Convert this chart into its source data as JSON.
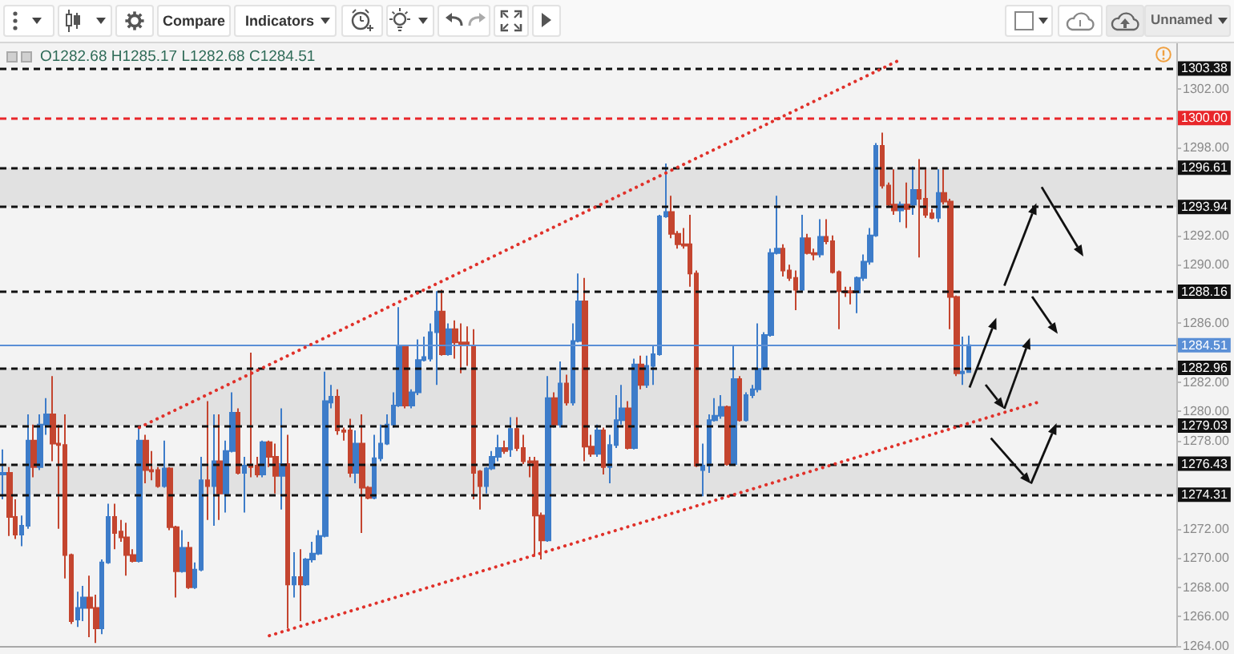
{
  "chart_data": {
    "type": "candlestick",
    "categories": [
      null,
      null,
      null,
      null,
      null,
      null,
      null,
      null,
      null,
      null,
      null,
      null,
      null,
      null,
      null,
      null,
      null,
      null,
      null,
      null,
      null,
      null,
      null,
      null,
      null,
      null,
      null,
      null,
      null,
      null,
      null,
      null,
      null,
      null,
      null,
      null,
      null,
      null,
      null,
      null,
      null,
      null,
      null,
      null,
      null,
      null,
      null,
      null,
      null,
      null,
      null,
      null,
      null,
      null,
      null,
      null,
      null,
      null,
      null,
      null,
      null,
      null,
      null,
      null,
      null,
      null,
      null,
      null,
      null,
      null,
      null,
      null,
      null,
      null,
      null,
      null,
      null,
      null,
      null,
      null,
      null,
      null,
      null,
      null,
      null,
      null,
      null,
      null,
      null,
      null,
      null,
      null,
      null,
      null,
      null,
      null,
      null,
      null,
      null,
      null,
      null,
      null,
      null,
      null,
      null,
      null,
      null,
      null,
      null,
      null,
      null,
      null,
      null,
      null,
      null,
      null,
      null,
      null,
      null,
      null,
      null,
      null,
      null,
      null,
      null,
      null,
      null,
      null,
      null,
      null,
      null,
      null,
      null,
      null,
      null,
      null,
      null,
      null,
      null,
      null,
      null,
      null,
      null,
      null,
      null,
      null,
      null,
      null,
      null,
      null,
      null,
      null,
      null,
      null,
      null,
      null,
      null,
      null,
      null,
      null,
      null,
      null,
      null,
      null,
      null,
      null,
      null,
      null,
      null,
      null,
      null,
      null,
      null,
      null,
      null,
      null,
      null,
      null,
      null,
      null,
      null,
      null,
      null,
      null,
      null,
      null,
      null,
      null,
      null,
      null
    ],
    "ohlc": [
      [
        1275.7,
        1277.4,
        1274.0,
        1275.8
      ],
      [
        1275.8,
        1276.2,
        1271.5,
        1272.8
      ],
      [
        1272.8,
        1274.0,
        1271.3,
        1271.6
      ],
      [
        1271.6,
        1272.9,
        1270.8,
        1272.2
      ],
      [
        1272.2,
        1279.8,
        1272.0,
        1278.0
      ],
      [
        1278.0,
        1279.1,
        1275.5,
        1276.2
      ],
      [
        1276.2,
        1279.8,
        1276.0,
        1279.1
      ],
      [
        1279.1,
        1280.9,
        1278.4,
        1279.8
      ],
      [
        1279.8,
        1282.4,
        1276.6,
        1277.8
      ],
      [
        1277.8,
        1279.1,
        1272.0,
        1277.7
      ],
      [
        1277.7,
        1279.8,
        1268.6,
        1270.2
      ],
      [
        1270.2,
        1270.3,
        1265.5,
        1265.7
      ],
      [
        1265.8,
        1267.7,
        1265.3,
        1266.6
      ],
      [
        1266.6,
        1268.1,
        1265.7,
        1267.3
      ],
      [
        1267.3,
        1268.8,
        1264.6,
        1266.6
      ],
      [
        1266.6,
        1267.5,
        1264.2,
        1265.2
      ],
      [
        1265.2,
        1269.9,
        1264.8,
        1269.7
      ],
      [
        1269.7,
        1273.7,
        1269.6,
        1272.8
      ],
      [
        1272.8,
        1273.7,
        1270.6,
        1271.7
      ],
      [
        1271.8,
        1272.6,
        1271.1,
        1271.4
      ],
      [
        1271.4,
        1272.4,
        1268.8,
        1270.2
      ],
      [
        1270.2,
        1270.6,
        1269.7,
        1269.8
      ],
      [
        1269.8,
        1278.9,
        1269.7,
        1278.0
      ],
      [
        1278.0,
        1278.4,
        1275.1,
        1276.0
      ],
      [
        1276.0,
        1277.3,
        1275.3,
        1275.9
      ],
      [
        1276.0,
        1276.2,
        1274.8,
        1274.9
      ],
      [
        1274.9,
        1278.0,
        1274.8,
        1276.1
      ],
      [
        1276.1,
        1276.2,
        1271.9,
        1272.1
      ],
      [
        1272.1,
        1272.2,
        1267.3,
        1269.1
      ],
      [
        1269.1,
        1271.9,
        1269.0,
        1270.7
      ],
      [
        1270.7,
        1271.1,
        1267.9,
        1268.0
      ],
      [
        1268.0,
        1269.7,
        1267.9,
        1269.2
      ],
      [
        1269.2,
        1276.9,
        1269.1,
        1275.3
      ],
      [
        1275.3,
        1280.7,
        1272.6,
        1274.9
      ],
      [
        1274.9,
        1279.8,
        1272.2,
        1276.6
      ],
      [
        1276.6,
        1279.8,
        1272.6,
        1274.4
      ],
      [
        1274.4,
        1278.0,
        1273.1,
        1277.3
      ],
      [
        1277.3,
        1281.3,
        1277.2,
        1279.9
      ],
      [
        1279.9,
        1280.2,
        1275.7,
        1275.8
      ],
      [
        1275.8,
        1276.9,
        1273.1,
        1276.3
      ],
      [
        1276.3,
        1284.0,
        1275.5,
        1276.2
      ],
      [
        1276.3,
        1276.9,
        1275.5,
        1275.7
      ],
      [
        1275.7,
        1278.0,
        1275.5,
        1277.9
      ],
      [
        1277.9,
        1278.0,
        1276.2,
        1276.9
      ],
      [
        1276.9,
        1277.8,
        1274.4,
        1275.6
      ],
      [
        1275.6,
        1280.2,
        1273.3,
        1276.4
      ],
      [
        1276.4,
        1278.4,
        1265.2,
        1268.2
      ],
      [
        1268.2,
        1270.4,
        1267.3,
        1268.7
      ],
      [
        1268.7,
        1270.6,
        1265.7,
        1268.2
      ],
      [
        1268.2,
        1270.0,
        1268.1,
        1269.9
      ],
      [
        1269.9,
        1271.1,
        1269.7,
        1270.3
      ],
      [
        1270.3,
        1271.9,
        1270.2,
        1271.5
      ],
      [
        1271.5,
        1282.7,
        1271.4,
        1280.7
      ],
      [
        1280.6,
        1281.8,
        1280.2,
        1281.0
      ],
      [
        1281.0,
        1281.5,
        1278.4,
        1278.7
      ],
      [
        1278.7,
        1278.9,
        1278.0,
        1278.6
      ],
      [
        1278.7,
        1279.5,
        1275.5,
        1275.8
      ],
      [
        1275.8,
        1278.7,
        1275.1,
        1277.8
      ],
      [
        1277.8,
        1279.8,
        1271.7,
        1274.8
      ],
      [
        1274.8,
        1274.9,
        1274.0,
        1274.1
      ],
      [
        1274.1,
        1278.4,
        1274.0,
        1276.8
      ],
      [
        1276.8,
        1279.1,
        1276.6,
        1277.8
      ],
      [
        1277.8,
        1279.8,
        1277.7,
        1279.1
      ],
      [
        1279.1,
        1281.3,
        1278.9,
        1280.4
      ],
      [
        1280.4,
        1287.1,
        1280.3,
        1284.4
      ],
      [
        1284.4,
        1284.5,
        1280.2,
        1280.4
      ],
      [
        1280.4,
        1281.5,
        1280.2,
        1281.3
      ],
      [
        1281.3,
        1284.9,
        1281.1,
        1283.5
      ],
      [
        1283.5,
        1285.1,
        1283.4,
        1283.7
      ],
      [
        1283.6,
        1286.0,
        1283.4,
        1285.4
      ],
      [
        1285.4,
        1288.2,
        1281.8,
        1286.8
      ],
      [
        1286.8,
        1288.3,
        1283.8,
        1283.9
      ],
      [
        1283.9,
        1286.0,
        1283.8,
        1285.6
      ],
      [
        1285.6,
        1286.2,
        1283.6,
        1284.7
      ],
      [
        1284.7,
        1286.0,
        1282.6,
        1284.6
      ],
      [
        1284.7,
        1285.8,
        1283.1,
        1284.5
      ],
      [
        1284.5,
        1285.6,
        1274.0,
        1275.8
      ],
      [
        1275.9,
        1276.0,
        1273.3,
        1274.9
      ],
      [
        1274.9,
        1276.2,
        1274.4,
        1276.1
      ],
      [
        1276.1,
        1277.3,
        1276.0,
        1276.9
      ],
      [
        1276.9,
        1278.4,
        1276.6,
        1277.5
      ],
      [
        1277.5,
        1278.0,
        1277.1,
        1277.3
      ],
      [
        1277.4,
        1279.6,
        1276.9,
        1278.8
      ],
      [
        1278.8,
        1279.6,
        1277.3,
        1277.5
      ],
      [
        1277.5,
        1278.4,
        1276.4,
        1276.6
      ],
      [
        1276.6,
        1276.9,
        1275.5,
        1276.5
      ],
      [
        1276.6,
        1276.9,
        1270.1,
        1272.9
      ],
      [
        1272.9,
        1273.1,
        1269.9,
        1271.2
      ],
      [
        1271.2,
        1282.4,
        1271.1,
        1280.9
      ],
      [
        1280.9,
        1281.3,
        1278.9,
        1279.1
      ],
      [
        1279.1,
        1283.4,
        1278.9,
        1281.9
      ],
      [
        1281.9,
        1282.5,
        1280.4,
        1280.6
      ],
      [
        1280.6,
        1286.0,
        1280.4,
        1284.8
      ],
      [
        1284.8,
        1289.4,
        1284.7,
        1287.5
      ],
      [
        1287.5,
        1289.1,
        1276.6,
        1277.6
      ],
      [
        1277.6,
        1278.4,
        1276.9,
        1277.1
      ],
      [
        1277.1,
        1279.1,
        1276.9,
        1278.7
      ],
      [
        1278.7,
        1278.9,
        1275.7,
        1276.2
      ],
      [
        1276.2,
        1278.4,
        1275.1,
        1277.7
      ],
      [
        1277.7,
        1281.1,
        1277.5,
        1279.4
      ],
      [
        1279.4,
        1281.8,
        1279.1,
        1280.2
      ],
      [
        1280.2,
        1280.7,
        1277.4,
        1277.5
      ],
      [
        1277.5,
        1283.6,
        1277.4,
        1283.2
      ],
      [
        1283.2,
        1283.8,
        1281.5,
        1281.8
      ],
      [
        1281.8,
        1283.8,
        1281.6,
        1283.1
      ],
      [
        1283.1,
        1284.5,
        1281.8,
        1283.9
      ],
      [
        1283.9,
        1293.4,
        1283.8,
        1293.3
      ],
      [
        1293.3,
        1296.9,
        1293.2,
        1293.6
      ],
      [
        1293.6,
        1294.7,
        1291.8,
        1292.1
      ],
      [
        1292.1,
        1292.3,
        1291.1,
        1291.4
      ],
      [
        1291.4,
        1292.5,
        1291.1,
        1291.3
      ],
      [
        1291.4,
        1293.4,
        1288.5,
        1289.4
      ],
      [
        1289.4,
        1289.6,
        1276.2,
        1276.3
      ],
      [
        1276.0,
        1277.8,
        1274.2,
        1276.3
      ],
      [
        1276.3,
        1279.8,
        1275.8,
        1279.4
      ],
      [
        1279.4,
        1280.9,
        1279.3,
        1279.7
      ],
      [
        1279.7,
        1281.1,
        1279.5,
        1280.3
      ],
      [
        1280.3,
        1280.4,
        1276.3,
        1276.4
      ],
      [
        1276.4,
        1284.5,
        1276.3,
        1282.2
      ],
      [
        1282.2,
        1282.4,
        1279.3,
        1279.4
      ],
      [
        1279.4,
        1281.3,
        1279.3,
        1281.1
      ],
      [
        1281.1,
        1281.8,
        1280.9,
        1281.5
      ],
      [
        1281.5,
        1286.0,
        1281.3,
        1282.9
      ],
      [
        1282.9,
        1285.4,
        1282.8,
        1285.2
      ],
      [
        1285.2,
        1291.1,
        1285.1,
        1290.8
      ],
      [
        1290.8,
        1294.7,
        1290.7,
        1291.1
      ],
      [
        1291.1,
        1291.4,
        1289.2,
        1289.6
      ],
      [
        1289.6,
        1290.0,
        1288.9,
        1289.1
      ],
      [
        1289.1,
        1289.6,
        1286.9,
        1288.3
      ],
      [
        1288.3,
        1293.4,
        1288.2,
        1291.8
      ],
      [
        1291.8,
        1292.1,
        1290.7,
        1290.8
      ],
      [
        1290.8,
        1291.1,
        1290.3,
        1290.7
      ],
      [
        1290.7,
        1293.1,
        1290.5,
        1291.9
      ],
      [
        1291.9,
        1293.1,
        1291.4,
        1291.6
      ],
      [
        1291.6,
        1292.0,
        1289.4,
        1289.5
      ],
      [
        1289.5,
        1289.6,
        1285.6,
        1288.2
      ],
      [
        1288.2,
        1288.5,
        1287.8,
        1288.1
      ],
      [
        1288.2,
        1288.5,
        1287.3,
        1288.1
      ],
      [
        1288.1,
        1289.2,
        1286.7,
        1289.1
      ],
      [
        1289.1,
        1290.7,
        1288.9,
        1290.2
      ],
      [
        1290.2,
        1292.5,
        1290.0,
        1292.0
      ],
      [
        1292.0,
        1298.3,
        1291.9,
        1298.1
      ],
      [
        1298.1,
        1299.0,
        1295.2,
        1295.4
      ],
      [
        1295.4,
        1295.6,
        1294.0,
        1294.1
      ],
      [
        1294.1,
        1296.5,
        1293.4,
        1293.7
      ],
      [
        1293.7,
        1294.3,
        1292.9,
        1294.1
      ],
      [
        1294.1,
        1295.6,
        1292.5,
        1293.8
      ],
      [
        1294.1,
        1296.7,
        1293.4,
        1295.1
      ],
      [
        1295.1,
        1297.2,
        1290.5,
        1294.5
      ],
      [
        1294.5,
        1296.5,
        1293.2,
        1293.4
      ],
      [
        1293.5,
        1293.8,
        1293.1,
        1293.2
      ],
      [
        1293.2,
        1296.5,
        1292.9,
        1294.9
      ],
      [
        1294.9,
        1296.5,
        1294.1,
        1294.3
      ],
      [
        1294.3,
        1294.5,
        1285.6,
        1287.8
      ],
      [
        1287.8,
        1287.9,
        1282.4,
        1282.6
      ],
      [
        1282.6,
        1285.1,
        1281.8,
        1282.7
      ],
      [
        1282.68,
        1285.17,
        1282.68,
        1284.51
      ],
      null,
      null,
      null,
      null,
      null,
      null,
      null,
      null,
      null,
      null,
      null,
      null,
      null,
      null,
      null,
      null,
      null,
      null,
      null,
      null,
      null,
      null,
      null,
      null,
      null,
      null,
      null,
      null,
      null,
      null,
      null,
      null,
      null
    ],
    "colors": [
      "#3d7cc9",
      "#c4452f",
      "#c4452f",
      "#3d7cc9",
      "#3d7cc9",
      "#c4452f",
      "#3d7cc9",
      "#3d7cc9",
      "#c4452f",
      "#c4452f",
      "#c4452f",
      "#c4452f",
      "#3d7cc9",
      "#3d7cc9",
      "#c4452f",
      "#c4452f",
      "#3d7cc9",
      "#3d7cc9",
      "#c4452f",
      "#c4452f",
      "#c4452f",
      "#c4452f",
      "#3d7cc9",
      "#c4452f",
      "#c4452f",
      "#c4452f",
      "#3d7cc9",
      "#c4452f",
      "#c4452f",
      "#3d7cc9",
      "#c4452f",
      "#3d7cc9",
      "#3d7cc9",
      "#c4452f",
      "#3d7cc9",
      "#c4452f",
      "#3d7cc9",
      "#3d7cc9",
      "#c4452f",
      "#3d7cc9",
      "#c4452f",
      "#c4452f",
      "#3d7cc9",
      "#c4452f",
      "#c4452f",
      "#3d7cc9",
      "#c4452f",
      "#3d7cc9",
      "#c4452f",
      "#3d7cc9",
      "#3d7cc9",
      "#3d7cc9",
      "#3d7cc9",
      "#3d7cc9",
      "#c4452f",
      "#c4452f",
      "#c4452f",
      "#3d7cc9",
      "#c4452f",
      "#c4452f",
      "#3d7cc9",
      "#3d7cc9",
      "#3d7cc9",
      "#3d7cc9",
      "#3d7cc9",
      "#c4452f",
      "#3d7cc9",
      "#3d7cc9",
      "#3d7cc9",
      "#3d7cc9",
      "#3d7cc9",
      "#c4452f",
      "#3d7cc9",
      "#c4452f",
      "#c4452f",
      "#c4452f",
      "#c4452f",
      "#c4452f",
      "#3d7cc9",
      "#3d7cc9",
      "#3d7cc9",
      "#c4452f",
      "#3d7cc9",
      "#c4452f",
      "#c4452f",
      "#c4452f",
      "#c4452f",
      "#c4452f",
      "#3d7cc9",
      "#c4452f",
      "#3d7cc9",
      "#c4452f",
      "#3d7cc9",
      "#3d7cc9",
      "#c4452f",
      "#c4452f",
      "#3d7cc9",
      "#c4452f",
      "#3d7cc9",
      "#3d7cc9",
      "#3d7cc9",
      "#c4452f",
      "#3d7cc9",
      "#c4452f",
      "#3d7cc9",
      "#3d7cc9",
      "#3d7cc9",
      "#3d7cc9",
      "#c4452f",
      "#c4452f",
      "#c4452f",
      "#c4452f",
      "#c4452f",
      "#3d7cc9",
      "#3d7cc9",
      "#3d7cc9",
      "#3d7cc9",
      "#c4452f",
      "#3d7cc9",
      "#c4452f",
      "#3d7cc9",
      "#3d7cc9",
      "#3d7cc9",
      "#3d7cc9",
      "#3d7cc9",
      "#3d7cc9",
      "#c4452f",
      "#c4452f",
      "#c4452f",
      "#3d7cc9",
      "#c4452f",
      "#c4452f",
      "#3d7cc9",
      "#c4452f",
      "#c4452f",
      "#c4452f",
      "#c4452f",
      "#c4452f",
      "#3d7cc9",
      "#3d7cc9",
      "#3d7cc9",
      "#3d7cc9",
      "#c4452f",
      "#c4452f",
      "#c4452f",
      "#3d7cc9",
      "#c4452f",
      "#3d7cc9",
      "#c4452f",
      "#c4452f",
      "#c4452f",
      "#3d7cc9",
      "#c4452f",
      "#c4452f",
      "#c4452f",
      "#3d7cc9",
      "#3d7cc9",
      null,
      null,
      null,
      null,
      null,
      null,
      null,
      null,
      null,
      null,
      null,
      null,
      null,
      null,
      null,
      null,
      null,
      null,
      null,
      null,
      null,
      null,
      null,
      null,
      null,
      null,
      null,
      null,
      null,
      null,
      null,
      null,
      null
    ],
    "series": [
      {
        "type": "line",
        "color": "#e0312a",
        "line_style": "dotted",
        "values": [
          null,
          null,
          null,
          null,
          null,
          null,
          null,
          null,
          null,
          null,
          null,
          null,
          null,
          null,
          null,
          null,
          null,
          null,
          null,
          null,
          null,
          null,
          1278.9,
          null,
          null,
          null,
          null,
          null,
          null,
          null,
          null,
          null,
          null,
          null,
          null,
          null,
          null,
          null,
          null,
          null,
          null,
          null,
          null,
          null,
          null,
          null,
          null,
          null,
          null,
          null,
          null,
          null,
          null,
          null,
          null,
          null,
          null,
          null,
          null,
          null,
          null,
          null,
          null,
          null,
          null,
          null,
          null,
          null,
          null,
          null,
          null,
          null,
          null,
          null,
          null,
          null,
          null,
          null,
          null,
          null,
          null,
          null,
          null,
          null,
          null,
          null,
          null,
          null,
          null,
          null,
          null,
          null,
          null,
          null,
          null,
          null,
          null,
          null,
          null,
          null,
          null,
          null,
          null,
          null,
          null,
          null,
          null,
          null,
          null,
          null,
          null,
          null,
          null,
          null,
          null,
          null,
          null,
          null,
          null,
          null,
          null,
          null,
          null,
          null,
          null,
          null,
          null,
          null,
          null,
          null,
          null,
          null,
          null,
          null,
          null,
          null,
          null,
          null,
          null,
          null,
          null,
          null,
          null,
          null,
          null,
          1304.0,
          null,
          null,
          null,
          null,
          null,
          null,
          null,
          null,
          null,
          null,
          null,
          null,
          null,
          null,
          null,
          null,
          null,
          null,
          null,
          null,
          null,
          null,
          null,
          null,
          null,
          null,
          null,
          null,
          null,
          null,
          null,
          null,
          null,
          null,
          null,
          null,
          null,
          null,
          null,
          null,
          null,
          null,
          null,
          null
        ]
      },
      {
        "type": "line",
        "color": "#e0312a",
        "line_style": "dotted",
        "values": [
          null,
          null,
          null,
          null,
          null,
          null,
          null,
          null,
          null,
          null,
          null,
          null,
          null,
          null,
          null,
          null,
          null,
          null,
          null,
          null,
          null,
          null,
          null,
          null,
          null,
          null,
          null,
          null,
          null,
          null,
          null,
          null,
          null,
          null,
          null,
          null,
          null,
          null,
          null,
          null,
          null,
          null,
          null,
          1264.7,
          null,
          null,
          null,
          null,
          null,
          null,
          null,
          null,
          null,
          null,
          null,
          null,
          null,
          null,
          null,
          null,
          null,
          null,
          null,
          null,
          null,
          null,
          null,
          null,
          null,
          null,
          null,
          null,
          null,
          null,
          null,
          null,
          null,
          null,
          null,
          null,
          null,
          null,
          null,
          null,
          null,
          null,
          null,
          null,
          null,
          null,
          null,
          null,
          null,
          null,
          null,
          null,
          null,
          null,
          null,
          null,
          null,
          null,
          null,
          null,
          null,
          null,
          null,
          null,
          null,
          null,
          null,
          null,
          null,
          null,
          null,
          null,
          null,
          null,
          null,
          null,
          null,
          null,
          null,
          null,
          null,
          null,
          null,
          null,
          null,
          null,
          null,
          null,
          null,
          null,
          null,
          null,
          null,
          null,
          null,
          null,
          null,
          null,
          null,
          null,
          null,
          null,
          null,
          null,
          null,
          null,
          null,
          null,
          null,
          null,
          null,
          null,
          null,
          null,
          null,
          null,
          null,
          null,
          null,
          null,
          null,
          null,
          null,
          1280.6,
          null,
          null,
          null,
          null,
          null,
          null,
          null,
          null,
          null,
          null,
          null,
          null,
          null,
          null,
          null,
          null,
          null,
          null,
          null,
          null,
          null,
          null
        ]
      }
    ],
    "ylim": [
      1264,
      1305.1
    ],
    "yticks": [
      {
        "value": 1264,
        "label": "1264.00"
      },
      {
        "value": 1266,
        "label": "1266.00"
      },
      {
        "value": 1268,
        "label": "1268.00"
      },
      {
        "value": 1270,
        "label": "1270.00"
      },
      {
        "value": 1272,
        "label": "1272.00"
      },
      {
        "value": 1278,
        "label": "1278.00"
      },
      {
        "value": 1280,
        "label": "1280.00"
      },
      {
        "value": 1282,
        "label": "1282.00"
      },
      {
        "value": 1286,
        "label": "1286.00"
      },
      {
        "value": 1290,
        "label": "1290.00"
      },
      {
        "value": 1292,
        "label": "1292.00"
      },
      {
        "value": 1298,
        "label": "1298.00"
      },
      {
        "value": 1302,
        "label": "1302.00"
      }
    ],
    "tick_labels": "y",
    "ref_lines": [
      {
        "axis": "y",
        "value": 1303.38,
        "label": "1303.38",
        "color": "#111111",
        "line_style": "dashed"
      },
      {
        "axis": "y",
        "value": 1300.0,
        "label": "1300.00",
        "color": "#e8262a",
        "line_style": "dashed"
      },
      {
        "axis": "y",
        "value": 1296.61,
        "label": "1296.61",
        "color": "#111111",
        "line_style": "dashed"
      },
      {
        "axis": "y",
        "value": 1293.94,
        "label": "1293.94",
        "color": "#111111",
        "line_style": "dashed"
      },
      {
        "axis": "y",
        "value": 1288.16,
        "label": "1288.16",
        "color": "#111111",
        "line_style": "dashed"
      },
      {
        "axis": "y",
        "value": 1284.51,
        "label": "1284.51",
        "color": "#5a8fd6",
        "line_style": "solid"
      },
      {
        "axis": "y",
        "value": 1282.96,
        "label": "1282.96",
        "color": "#111111",
        "line_style": "dashed"
      },
      {
        "axis": "y",
        "value": 1279.03,
        "label": "1279.03",
        "color": "#111111",
        "line_style": "dashed"
      },
      {
        "axis": "y",
        "value": 1276.43,
        "label": "1276.43",
        "color": "#111111",
        "line_style": "dashed"
      },
      {
        "axis": "y",
        "value": 1274.31,
        "label": "1274.31",
        "color": "#111111",
        "line_style": "dashed"
      }
    ],
    "bands": [
      {
        "axis": "y",
        "from": 1293.94,
        "to": 1296.61,
        "color": "#e1e1e1"
      },
      {
        "axis": "y",
        "from": 1279.03,
        "to": 1282.96,
        "color": "#e1e1e1"
      },
      {
        "axis": "y",
        "from": 1274.31,
        "to": 1276.43,
        "color": "#e1e1e1"
      }
    ],
    "annotations": [
      "O1282.68 H1285.17 L1282.68 C1284.51",
      "Compare",
      "Indicators",
      "Unnamed"
    ]
  }
}
